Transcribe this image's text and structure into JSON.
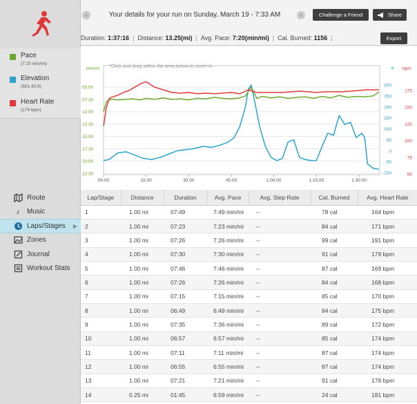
{
  "header": {
    "title": "Your details for your run on Sunday, March 19 - 7:33 AM",
    "challenge_label": "Challenge a Friend",
    "share_label": "Share",
    "export_label": "Export",
    "prev_glyph": "‹",
    "next_glyph": "›",
    "stats": {
      "duration_label": "Duration: ",
      "duration_value": "1:37:16",
      "distance_label": "Distance: ",
      "distance_value": "13.25(mi)",
      "pace_label": "Avg. Pace: ",
      "pace_value": "7:20(min/mi)",
      "cal_label": "Cal. Burned: ",
      "cal_value": "1156"
    }
  },
  "legend": [
    {
      "label": "Pace",
      "sub": "(7:20 min/mi)",
      "color": "#6aaa2c"
    },
    {
      "label": "Elevation",
      "sub": "(501.43 ft)",
      "color": "#2aa4cf"
    },
    {
      "label": "Heart Rate",
      "sub": "(174 bpm)",
      "color": "#e0383a"
    }
  ],
  "nav": [
    {
      "label": "Route",
      "icon": "route-icon"
    },
    {
      "label": "Music",
      "icon": "music-note-icon"
    },
    {
      "label": "Laps/Stages",
      "icon": "laps-icon",
      "active": true
    },
    {
      "label": "Zones",
      "icon": "zones-icon"
    },
    {
      "label": "Journal",
      "icon": "journal-icon"
    },
    {
      "label": "Workout Stats",
      "icon": "stats-list-icon"
    }
  ],
  "chart_data": {
    "type": "line",
    "hint": "*Click and drag within the area below to zoom in.",
    "left_unit": "min/mi",
    "right_unit_ft": "ft",
    "right_unit_bpm": "bpm",
    "x_ticks": [
      "00:00",
      "15:00",
      "30:00",
      "45:00",
      "1:00:00",
      "1:15:00",
      "1:30:00"
    ],
    "pace_ticks": [
      "05:00",
      "07:30",
      "10:00",
      "12:30",
      "15:00",
      "17:30",
      "20:00",
      "22:30"
    ],
    "elev_ticks": [
      "300",
      "250",
      "200",
      "150",
      "100",
      "50",
      "0",
      "-50",
      "-100"
    ],
    "hr_ticks": [
      "175",
      "150",
      "125",
      "100",
      "75",
      "50"
    ],
    "colors": {
      "pace": "#6aaa2c",
      "elevation": "#2aa4cf",
      "heart_rate": "#e0383a"
    },
    "xlim_min": [
      0,
      97.3
    ],
    "series": [
      {
        "name": "Pace",
        "unit": "min/mi",
        "x": [
          0,
          1,
          2,
          3,
          5,
          8,
          10,
          13,
          15,
          18,
          21,
          24,
          27,
          30,
          33,
          36,
          39,
          42,
          45,
          48,
          50,
          52,
          54,
          56,
          59,
          62,
          65,
          68,
          71,
          74,
          77,
          80,
          83,
          86,
          89,
          92,
          95,
          97
        ],
        "y": [
          10.0,
          8.0,
          7.6,
          7.5,
          7.6,
          7.5,
          7.4,
          7.6,
          7.3,
          7.5,
          7.2,
          7.5,
          7.4,
          7.6,
          7.3,
          7.4,
          7.1,
          7.3,
          7.4,
          7.2,
          6.8,
          5.0,
          7.3,
          6.9,
          7.2,
          7.0,
          7.3,
          7.1,
          7.0,
          7.3,
          6.9,
          7.2,
          6.7,
          7.1,
          6.9,
          7.0,
          6.8,
          6.0
        ]
      },
      {
        "name": "Elevation",
        "unit": "ft",
        "x": [
          0,
          2,
          5,
          8,
          11,
          14,
          17,
          20,
          23,
          26,
          29,
          32,
          35,
          38,
          41,
          44,
          46,
          48,
          50,
          51,
          52,
          53,
          55,
          57,
          59,
          61,
          63,
          65,
          67,
          69,
          71,
          73,
          75,
          77,
          79,
          81,
          83,
          85,
          87,
          89,
          91,
          92,
          93,
          95,
          97
        ],
        "y": [
          -45,
          -40,
          -10,
          -5,
          -20,
          -35,
          -40,
          -30,
          -15,
          0,
          5,
          10,
          20,
          15,
          25,
          40,
          60,
          110,
          200,
          280,
          300,
          240,
          110,
          20,
          -30,
          -45,
          -35,
          40,
          50,
          -30,
          -40,
          -45,
          -45,
          20,
          80,
          70,
          160,
          120,
          130,
          60,
          80,
          60,
          -60,
          -80,
          -85
        ]
      },
      {
        "name": "Heart Rate",
        "unit": "bpm",
        "x": [
          0,
          1,
          2,
          3,
          5,
          7,
          9,
          11,
          13,
          15,
          18,
          21,
          24,
          27,
          30,
          33,
          36,
          39,
          42,
          45,
          48,
          51,
          54,
          57,
          60,
          63,
          66,
          69,
          72,
          75,
          78,
          81,
          84,
          87,
          90,
          93,
          95,
          97
        ],
        "y": [
          122,
          150,
          163,
          165,
          168,
          172,
          175,
          180,
          185,
          188,
          180,
          176,
          172,
          171,
          172,
          170,
          171,
          170,
          171,
          172,
          170,
          176,
          172,
          172,
          172,
          172,
          173,
          174,
          173,
          172,
          173,
          173,
          173,
          174,
          175,
          176,
          176,
          176
        ]
      }
    ]
  },
  "table": {
    "headers": [
      "Lap/Stage",
      "Distance",
      "Duration",
      "Avg. Pace",
      "Avg. Step Rate",
      "Cal. Burned",
      "Avg. Heart Rate"
    ],
    "rows": [
      [
        "1",
        "1.00 mi",
        "07:49",
        "7:49 min/mi",
        "--",
        "78 cal",
        "164 bpm"
      ],
      [
        "2",
        "1.00 mi",
        "07:23",
        "7:23 min/mi",
        "--",
        "84 cal",
        "171 bpm"
      ],
      [
        "3",
        "1.00 mi",
        "07:26",
        "7:26 min/mi",
        "--",
        "99 cal",
        "191 bpm"
      ],
      [
        "4",
        "1.00 mi",
        "07:30",
        "7:30 min/mi",
        "--",
        "91 cal",
        "179 bpm"
      ],
      [
        "5",
        "1.00 mi",
        "07:46",
        "7:46 min/mi",
        "--",
        "87 cal",
        "169 bpm"
      ],
      [
        "6",
        "1.00 mi",
        "07:26",
        "7:26 min/mi",
        "--",
        "84 cal",
        "168 bpm"
      ],
      [
        "7",
        "1.00 mi",
        "07:15",
        "7:15 min/mi",
        "--",
        "85 cal",
        "170 bpm"
      ],
      [
        "8",
        "1.00 mi",
        "06:49",
        "6:49 min/mi",
        "--",
        "84 cal",
        "175 bpm"
      ],
      [
        "9",
        "1.00 mi",
        "07:35",
        "7:36 min/mi",
        "--",
        "89 cal",
        "172 bpm"
      ],
      [
        "10",
        "1.00 mi",
        "06:57",
        "6:57 min/mi",
        "--",
        "85 cal",
        "174 bpm"
      ],
      [
        "11",
        "1.00 mi",
        "07:11",
        "7:11 min/mi",
        "--",
        "87 cal",
        "174 bpm"
      ],
      [
        "12",
        "1.00 mi",
        "06:55",
        "6:55 min/mi",
        "--",
        "87 cal",
        "174 bpm"
      ],
      [
        "13",
        "1.00 mi",
        "07:21",
        "7:21 min/mi",
        "--",
        "91 cal",
        "178 bpm"
      ],
      [
        "14",
        "0.25 mi",
        "01:45",
        "6:59 min/mi",
        "--",
        "24 cal",
        "181 bpm"
      ]
    ]
  }
}
